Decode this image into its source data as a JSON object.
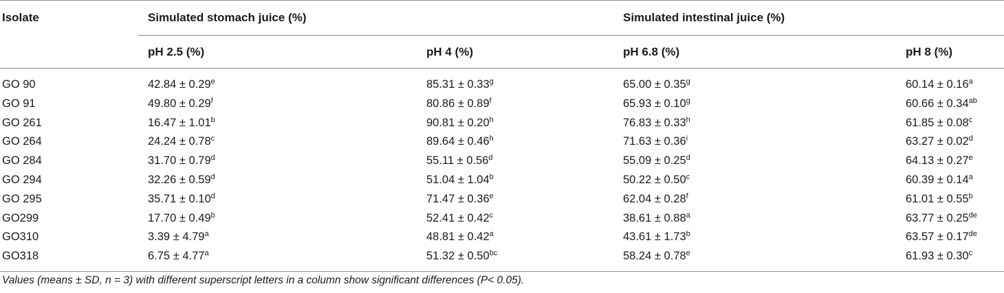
{
  "header": {
    "isolate": "Isolate",
    "group_stomach": "Simulated stomach juice (%)",
    "group_intestinal": "Simulated intestinal juice (%)",
    "col_ph25": "pH 2.5 (%)",
    "col_ph4": "pH 4 (%)",
    "col_ph68": "pH 6.8 (%)",
    "col_ph8": "pH 8 (%)"
  },
  "rows": [
    {
      "isolate": "GO 90",
      "ph25": {
        "v": "42.84 ± 0.29",
        "s": "e"
      },
      "ph4": {
        "v": "85.31 ± 0.33",
        "s": "g"
      },
      "ph68": {
        "v": "65.00 ± 0.35",
        "s": "g"
      },
      "ph8": {
        "v": "60.14 ± 0.16",
        "s": "a"
      }
    },
    {
      "isolate": "GO 91",
      "ph25": {
        "v": "49.80 ± 0.29",
        "s": "f"
      },
      "ph4": {
        "v": "80.86 ± 0.89",
        "s": "f"
      },
      "ph68": {
        "v": "65.93 ± 0.10",
        "s": "g"
      },
      "ph8": {
        "v": "60.66 ± 0.34",
        "s": "ab"
      }
    },
    {
      "isolate": "GO 261",
      "ph25": {
        "v": "16.47 ± 1.01",
        "s": "b"
      },
      "ph4": {
        "v": "90.81 ± 0.20",
        "s": "h"
      },
      "ph68": {
        "v": "76.83 ± 0.33",
        "s": "h"
      },
      "ph8": {
        "v": "61.85 ± 0.08",
        "s": "c"
      }
    },
    {
      "isolate": "GO 264",
      "ph25": {
        "v": "24.24 ± 0.78",
        "s": "c"
      },
      "ph4": {
        "v": "89.64 ± 0.46",
        "s": "h"
      },
      "ph68": {
        "v": "71.63 ± 0.36",
        "s": "i"
      },
      "ph8": {
        "v": "63.27 ± 0.02",
        "s": "d"
      }
    },
    {
      "isolate": "GO 284",
      "ph25": {
        "v": "31.70 ± 0.79",
        "s": "d"
      },
      "ph4": {
        "v": "55.11 ± 0.56",
        "s": "d"
      },
      "ph68": {
        "v": "55.09 ± 0.25",
        "s": "d"
      },
      "ph8": {
        "v": "64.13 ± 0.27",
        "s": "e"
      }
    },
    {
      "isolate": "GO 294",
      "ph25": {
        "v": "32.26 ± 0.59",
        "s": "d"
      },
      "ph4": {
        "v": "51.04 ± 1.04",
        "s": "b"
      },
      "ph68": {
        "v": "50.22 ± 0.50",
        "s": "c"
      },
      "ph8": {
        "v": "60.39 ± 0.14",
        "s": "a"
      }
    },
    {
      "isolate": "GO 295",
      "ph25": {
        "v": "35.71 ± 0.10",
        "s": "d"
      },
      "ph4": {
        "v": "71.47 ± 0.36",
        "s": "e"
      },
      "ph68": {
        "v": "62.04 ± 0.28",
        "s": "f"
      },
      "ph8": {
        "v": "61.01 ± 0.55",
        "s": "b"
      }
    },
    {
      "isolate": "GO299",
      "ph25": {
        "v": "17.70 ± 0.49",
        "s": "b"
      },
      "ph4": {
        "v": "52.41 ± 0.42",
        "s": "c"
      },
      "ph68": {
        "v": "38.61 ± 0.88",
        "s": "a"
      },
      "ph8": {
        "v": "63.77 ± 0.25",
        "s": "de"
      }
    },
    {
      "isolate": "GO310",
      "ph25": {
        "v": "3.39 ± 4.79",
        "s": "a"
      },
      "ph4": {
        "v": "48.81 ± 0.42",
        "s": "a"
      },
      "ph68": {
        "v": "43.61 ± 1.73",
        "s": "b"
      },
      "ph8": {
        "v": "63.57 ± 0.17",
        "s": "de"
      }
    },
    {
      "isolate": "GO318",
      "ph25": {
        "v": "6.75 ± 4.77",
        "s": "a"
      },
      "ph4": {
        "v": "51.32 ± 0.50",
        "s": "bc"
      },
      "ph68": {
        "v": "58.24 ± 0.78",
        "s": "e"
      },
      "ph8": {
        "v": "61.93 ± 0.30",
        "s": "c"
      }
    }
  ],
  "footnote": "Values (means ± SD, n = 3) with different superscript letters in a column show significant differences (P< 0.05)."
}
